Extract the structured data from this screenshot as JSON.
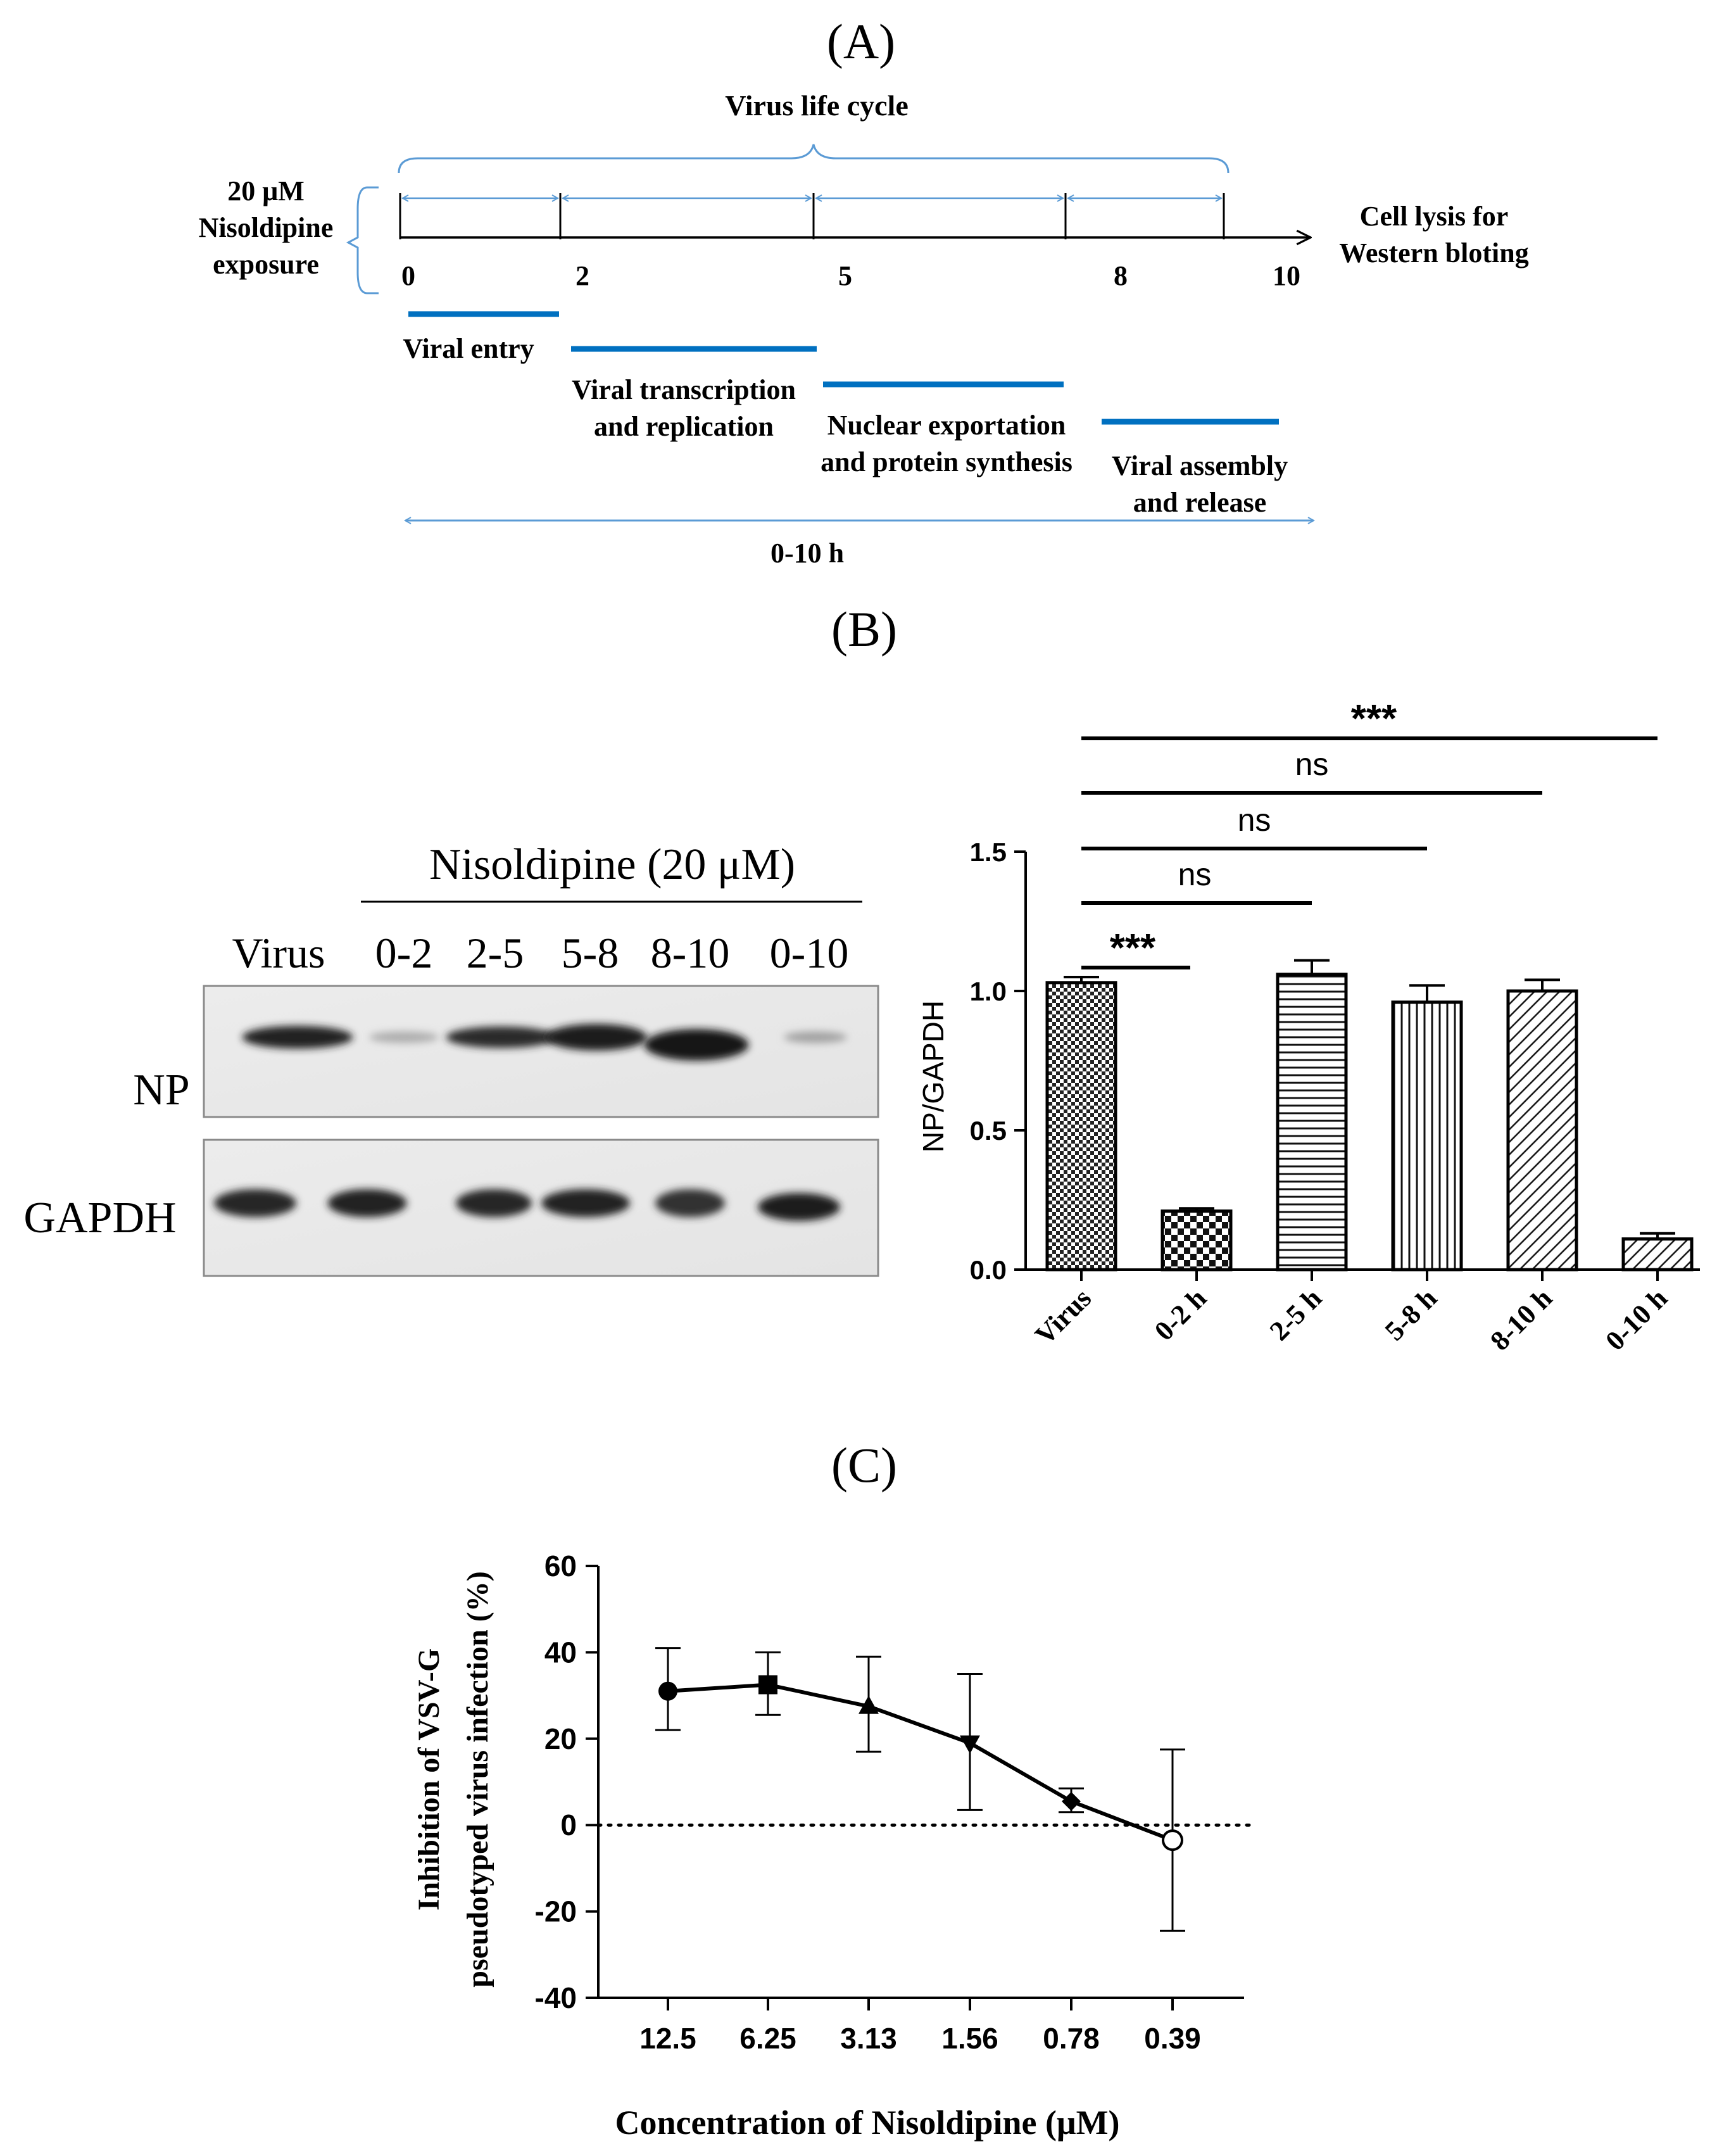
{
  "panelA": {
    "label": "(A)",
    "cycle_label": "Virus life cycle",
    "treatment_label": [
      "20 μM",
      "Nisoldipine",
      "exposure"
    ],
    "end_label": [
      "Cell lysis for",
      "Western bloting"
    ],
    "ticks": [
      "0",
      "2",
      "5",
      "8",
      "10"
    ],
    "phases": [
      {
        "lines": [
          "Viral entry"
        ]
      },
      {
        "lines": [
          "Viral transcription",
          "and replication"
        ]
      },
      {
        "lines": [
          "Nuclear exportation",
          "and protein synthesis"
        ]
      },
      {
        "lines": [
          "Viral assembly",
          "and release"
        ]
      }
    ],
    "span_label": "0-10 h",
    "colors": {
      "arrow": "#5b9bd5",
      "bar": "#0070c0",
      "axis": "#000000"
    }
  },
  "panelB": {
    "label": "(B)",
    "blot": {
      "header": "Nisoldipine (20 μM)",
      "lanes": [
        "Virus",
        "0-2",
        "2-5",
        "5-8",
        "8-10",
        "0-10"
      ],
      "rows": [
        "NP",
        "GAPDH"
      ],
      "np_band_intensity": [
        0.95,
        0.35,
        0.9,
        0.97,
        1.0,
        0.4
      ],
      "gapdh_band_intensity": [
        0.92,
        0.95,
        0.92,
        0.95,
        0.88,
        0.97
      ]
    }
  },
  "panelC": {
    "label": "(C)"
  },
  "chart_data": [
    {
      "type": "bar",
      "ylabel": "NP/GAPDH",
      "categories": [
        "Virus",
        "0-2 h",
        "2-5 h",
        "5-8 h",
        "8-10 h",
        "0-10 h"
      ],
      "values": [
        1.03,
        0.21,
        1.06,
        0.96,
        1.0,
        0.11
      ],
      "errors": [
        0.02,
        0.01,
        0.05,
        0.06,
        0.04,
        0.02
      ],
      "patterns": [
        "checker",
        "checker-large",
        "horizontal",
        "vertical",
        "diagonal",
        "diagonal"
      ],
      "ylim": [
        0,
        1.5
      ],
      "yticks": [
        "0.0",
        "0.5",
        "1.0",
        "1.5"
      ],
      "significance": [
        {
          "to": "0-2 h",
          "label": "***"
        },
        {
          "to": "2-5 h",
          "label": "ns"
        },
        {
          "to": "5-8 h",
          "label": "ns"
        },
        {
          "to": "8-10 h",
          "label": "ns"
        },
        {
          "to": "0-10 h",
          "label": "***"
        }
      ]
    },
    {
      "type": "line",
      "xlabel": "Concentration of Nisoldipine (μM)",
      "ylabel": [
        "Inhibition of VSV-G",
        "pseudotyped virus infection (%)"
      ],
      "x": [
        "12.5",
        "6.25",
        "3.13",
        "1.56",
        "0.78",
        "0.39"
      ],
      "y": [
        31,
        32.5,
        27.5,
        19,
        5.5,
        -3.5
      ],
      "err_upper": [
        41,
        40,
        39,
        35,
        8.5,
        17.5
      ],
      "err_lower": [
        22,
        25.5,
        17,
        3.5,
        3,
        -24.5
      ],
      "markers": [
        "circle",
        "square",
        "triangle-up",
        "triangle-down",
        "diamond",
        "circle-open"
      ],
      "ylim": [
        -40,
        60
      ],
      "yticks": [
        "-40",
        "-20",
        "0",
        "20",
        "40",
        "60"
      ],
      "reference_line": 0
    }
  ]
}
